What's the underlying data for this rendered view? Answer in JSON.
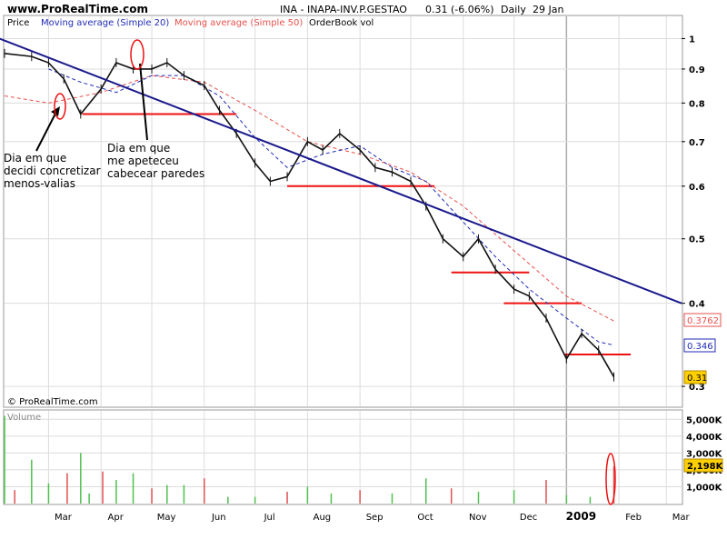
{
  "header": {
    "site": "www.ProRealTime.com",
    "instrument": "INA - INAPA-INV.P.GESTAO",
    "last_price": "0.31 (-6.06%)",
    "period": "Daily",
    "date": "29 Jan"
  },
  "legend": {
    "price": "Price",
    "ma20": "Moving average (Simple 20)",
    "ma50": "Moving average (Simple 50)",
    "orderbook": "OrderBook vol"
  },
  "copyright": "© ProRealTime.com",
  "volume_label": "Volume",
  "badges": {
    "ma50_value": "0.3762",
    "ma20_value": "0.346",
    "price_value": "0.31",
    "volume_value": "2,198K"
  },
  "annotations": {
    "note1": [
      "Dia em que",
      "decidi concretizar",
      "menos-valias"
    ],
    "note2": [
      "Dia em que",
      "me apeteceu",
      "cabecear paredes"
    ]
  },
  "colors": {
    "ma20": "#1f2bb4",
    "ma50": "#e8504c",
    "trendline": "#1a1a8c",
    "support": "#ee1111",
    "grid": "#dcdcdc",
    "vol_up": "#4fc04f",
    "vol_down": "#e05050",
    "badge_price": "#ffd000"
  },
  "chart_data": {
    "type": "line",
    "title": "INA - INAPA-INV.P.GESTAO",
    "price_axis": {
      "ticks": [
        1,
        0.9,
        0.8,
        0.7,
        0.6,
        0.5,
        0.4,
        0.3
      ],
      "scale": "log",
      "range": [
        0.28,
        1.08
      ]
    },
    "volume_axis": {
      "ticks": [
        "5,000K",
        "4,000K",
        "3,000K",
        "2,000K",
        "1,000K"
      ],
      "values": [
        5000,
        4000,
        3000,
        2000,
        1000
      ],
      "range": [
        0,
        5500
      ]
    },
    "x_tick_labels": [
      "Mar",
      "Apr",
      "May",
      "Jun",
      "Jul",
      "Aug",
      "Sep",
      "Oct",
      "Nov",
      "Dec",
      "2009",
      "Feb",
      "Mar"
    ],
    "x_tick_dates": [
      "2008-03-01",
      "2008-04-01",
      "2008-05-01",
      "2008-06-01",
      "2008-07-01",
      "2008-08-01",
      "2008-09-01",
      "2008-10-01",
      "2008-11-01",
      "2008-12-01",
      "2009-01-01",
      "2009-02-01",
      "2009-03-01"
    ],
    "x_range": [
      "2008-02-04",
      "2009-03-10"
    ],
    "series": [
      {
        "name": "Price",
        "x": [
          "2008-02-04",
          "2008-02-20",
          "2008-03-01",
          "2008-03-10",
          "2008-03-20",
          "2008-04-01",
          "2008-04-10",
          "2008-04-20",
          "2008-05-01",
          "2008-05-10",
          "2008-05-20",
          "2008-06-01",
          "2008-06-10",
          "2008-06-20",
          "2008-07-01",
          "2008-07-10",
          "2008-07-20",
          "2008-08-01",
          "2008-08-10",
          "2008-08-20",
          "2008-09-01",
          "2008-09-10",
          "2008-09-20",
          "2008-10-01",
          "2008-10-10",
          "2008-10-20",
          "2008-11-01",
          "2008-11-10",
          "2008-11-20",
          "2008-12-01",
          "2008-12-10",
          "2008-12-20",
          "2009-01-01",
          "2009-01-10",
          "2009-01-20",
          "2009-01-29"
        ],
        "values": [
          0.95,
          0.94,
          0.92,
          0.87,
          0.77,
          0.84,
          0.92,
          0.9,
          0.9,
          0.92,
          0.88,
          0.85,
          0.78,
          0.72,
          0.65,
          0.61,
          0.62,
          0.7,
          0.68,
          0.72,
          0.68,
          0.64,
          0.63,
          0.61,
          0.56,
          0.5,
          0.47,
          0.5,
          0.45,
          0.42,
          0.41,
          0.38,
          0.33,
          0.36,
          0.34,
          0.31
        ]
      },
      {
        "name": "Moving average (Simple 20)",
        "x": [
          "2008-03-01",
          "2008-03-20",
          "2008-04-10",
          "2008-05-01",
          "2008-05-20",
          "2008-06-10",
          "2008-07-01",
          "2008-07-20",
          "2008-08-10",
          "2008-09-01",
          "2008-09-20",
          "2008-10-10",
          "2008-11-01",
          "2008-11-20",
          "2008-12-10",
          "2009-01-01",
          "2009-01-20",
          "2009-01-29"
        ],
        "values": [
          0.9,
          0.86,
          0.83,
          0.88,
          0.88,
          0.82,
          0.71,
          0.64,
          0.67,
          0.69,
          0.64,
          0.61,
          0.53,
          0.47,
          0.42,
          0.38,
          0.35,
          0.346
        ]
      },
      {
        "name": "Moving average (Simple 50)",
        "x": [
          "2008-02-04",
          "2008-03-01",
          "2008-04-01",
          "2008-05-01",
          "2008-06-01",
          "2008-07-01",
          "2008-08-01",
          "2008-09-01",
          "2008-10-01",
          "2008-11-01",
          "2008-12-01",
          "2009-01-01",
          "2009-01-29"
        ],
        "values": [
          0.82,
          0.8,
          0.83,
          0.88,
          0.86,
          0.78,
          0.7,
          0.67,
          0.63,
          0.56,
          0.48,
          0.41,
          0.3762
        ]
      }
    ],
    "trendline": {
      "from": {
        "x": "2008-02-01",
        "y": 1.0
      },
      "to": {
        "x": "2009-03-10",
        "y": 0.4
      }
    },
    "support_lines": [
      {
        "y": 0.77,
        "from": "2008-03-21",
        "to": "2008-06-20"
      },
      {
        "y": 0.6,
        "from": "2008-07-20",
        "to": "2008-10-15"
      },
      {
        "y": 0.445,
        "from": "2008-10-25",
        "to": "2008-12-10"
      },
      {
        "y": 0.4,
        "from": "2008-11-25",
        "to": "2009-01-10"
      },
      {
        "y": 0.335,
        "from": "2008-12-31",
        "to": "2009-02-08"
      }
    ],
    "volume_levels": [
      {
        "x": "2008-02-04",
        "v": 5200
      },
      {
        "x": "2008-02-10",
        "v": 800
      },
      {
        "x": "2008-02-20",
        "v": 2600
      },
      {
        "x": "2008-03-01",
        "v": 1200
      },
      {
        "x": "2008-03-12",
        "v": 1800
      },
      {
        "x": "2008-03-20",
        "v": 3000
      },
      {
        "x": "2008-03-25",
        "v": 600
      },
      {
        "x": "2008-04-02",
        "v": 1900
      },
      {
        "x": "2008-04-10",
        "v": 1400
      },
      {
        "x": "2008-04-20",
        "v": 1800
      },
      {
        "x": "2008-05-01",
        "v": 900
      },
      {
        "x": "2008-05-10",
        "v": 1100
      },
      {
        "x": "2008-05-20",
        "v": 1100
      },
      {
        "x": "2008-06-01",
        "v": 1500
      },
      {
        "x": "2008-06-15",
        "v": 400
      },
      {
        "x": "2008-07-01",
        "v": 400
      },
      {
        "x": "2008-07-20",
        "v": 700
      },
      {
        "x": "2008-08-01",
        "v": 1000
      },
      {
        "x": "2008-08-15",
        "v": 600
      },
      {
        "x": "2008-09-01",
        "v": 800
      },
      {
        "x": "2008-09-20",
        "v": 600
      },
      {
        "x": "2008-10-10",
        "v": 1500
      },
      {
        "x": "2008-10-25",
        "v": 900
      },
      {
        "x": "2008-11-10",
        "v": 700
      },
      {
        "x": "2008-12-01",
        "v": 800
      },
      {
        "x": "2008-12-20",
        "v": 1400
      },
      {
        "x": "2009-01-01",
        "v": 500
      },
      {
        "x": "2009-01-15",
        "v": 400
      },
      {
        "x": "2009-01-29",
        "v": 2198
      }
    ]
  }
}
